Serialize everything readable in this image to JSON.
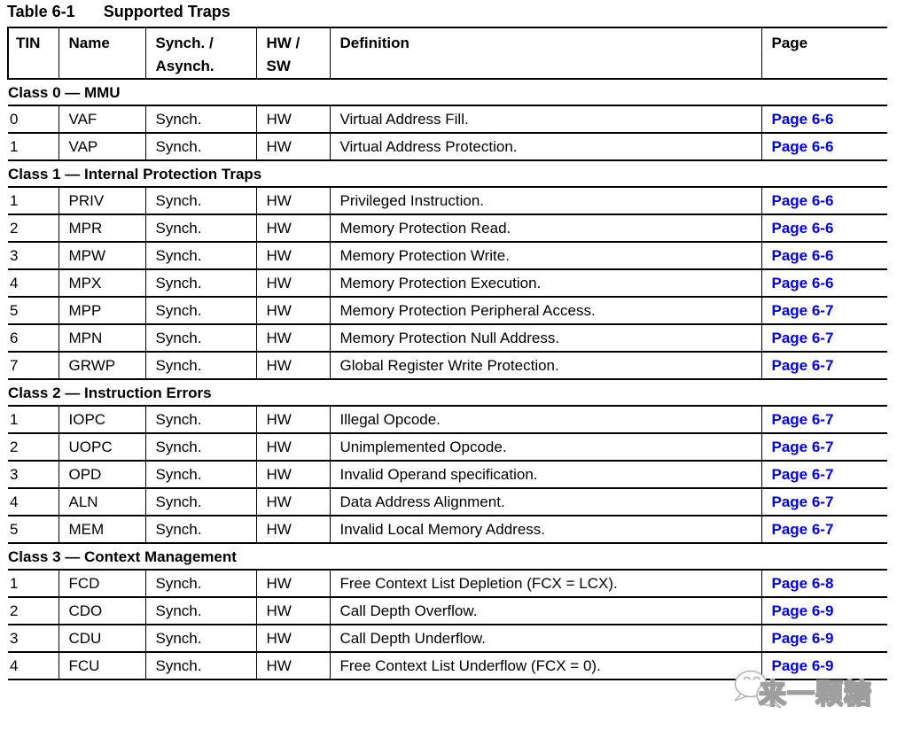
{
  "title": {
    "label": "Table 6-1",
    "caption": "Supported Traps"
  },
  "colors": {
    "link_blue": "#0000ee",
    "border_black": "#000000",
    "watermark_gray": "#9e9e9e",
    "background": "#ffffff"
  },
  "table": {
    "columns": [
      {
        "id": "tin",
        "lines": [
          "TIN"
        ]
      },
      {
        "id": "name",
        "lines": [
          "Name"
        ]
      },
      {
        "id": "synch-asynch",
        "lines": [
          "Synch. /",
          "Asynch."
        ]
      },
      {
        "id": "hw-sw",
        "lines": [
          "HW /",
          "SW"
        ]
      },
      {
        "id": "definition",
        "lines": [
          "Definition"
        ]
      },
      {
        "id": "page",
        "lines": [
          "Page"
        ]
      }
    ],
    "sections": [
      {
        "heading": "Class 0 — MMU",
        "rows": [
          {
            "tin": "0",
            "name": "VAF",
            "sync": "Synch.",
            "hw": "HW",
            "definition": "Virtual Address Fill.",
            "page": "Page 6-6"
          },
          {
            "tin": "1",
            "name": "VAP",
            "sync": "Synch.",
            "hw": "HW",
            "definition": "Virtual Address Protection.",
            "page": "Page 6-6"
          }
        ]
      },
      {
        "heading": "Class 1 — Internal Protection Traps",
        "rows": [
          {
            "tin": "1",
            "name": "PRIV",
            "sync": "Synch.",
            "hw": "HW",
            "definition": "Privileged Instruction.",
            "page": "Page 6-6"
          },
          {
            "tin": "2",
            "name": "MPR",
            "sync": "Synch.",
            "hw": "HW",
            "definition": "Memory Protection Read.",
            "page": "Page 6-6"
          },
          {
            "tin": "3",
            "name": "MPW",
            "sync": "Synch.",
            "hw": "HW",
            "definition": "Memory Protection Write.",
            "page": "Page 6-6"
          },
          {
            "tin": "4",
            "name": "MPX",
            "sync": "Synch.",
            "hw": "HW",
            "definition": "Memory Protection Execution.",
            "page": "Page 6-6"
          },
          {
            "tin": "5",
            "name": "MPP",
            "sync": "Synch.",
            "hw": "HW",
            "definition": "Memory Protection Peripheral Access.",
            "page": "Page 6-7"
          },
          {
            "tin": "6",
            "name": "MPN",
            "sync": "Synch.",
            "hw": "HW",
            "definition": "Memory Protection Null Address.",
            "page": "Page 6-7"
          },
          {
            "tin": "7",
            "name": "GRWP",
            "sync": "Synch.",
            "hw": "HW",
            "definition": "Global Register Write Protection.",
            "page": "Page 6-7"
          }
        ]
      },
      {
        "heading": "Class 2 — Instruction Errors",
        "rows": [
          {
            "tin": "1",
            "name": "IOPC",
            "sync": "Synch.",
            "hw": "HW",
            "definition": "Illegal Opcode.",
            "page": "Page 6-7"
          },
          {
            "tin": "2",
            "name": "UOPC",
            "sync": "Synch.",
            "hw": "HW",
            "definition": "Unimplemented Opcode.",
            "page": "Page 6-7"
          },
          {
            "tin": "3",
            "name": "OPD",
            "sync": "Synch.",
            "hw": "HW",
            "definition": "Invalid Operand specification.",
            "page": "Page 6-7"
          },
          {
            "tin": "4",
            "name": "ALN",
            "sync": "Synch.",
            "hw": "HW",
            "definition": "Data Address Alignment.",
            "page": "Page 6-7"
          },
          {
            "tin": "5",
            "name": "MEM",
            "sync": "Synch.",
            "hw": "HW",
            "definition": "Invalid Local Memory Address.",
            "page": "Page 6-7"
          }
        ]
      },
      {
        "heading": "Class 3 — Context Management",
        "rows": [
          {
            "tin": "1",
            "name": "FCD",
            "sync": "Synch.",
            "hw": "HW",
            "definition": "Free Context List Depletion (FCX = LCX).",
            "page": "Page 6-8"
          },
          {
            "tin": "2",
            "name": "CDO",
            "sync": "Synch.",
            "hw": "HW",
            "definition": "Call Depth Overflow.",
            "page": "Page 6-9"
          },
          {
            "tin": "3",
            "name": "CDU",
            "sync": "Synch.",
            "hw": "HW",
            "definition": "Call Depth Underflow.",
            "page": "Page 6-9"
          },
          {
            "tin": "4",
            "name": "FCU",
            "sync": "Synch.",
            "hw": "HW",
            "definition": "Free Context List Underflow (FCX = 0).",
            "page": "Page 6-9"
          }
        ]
      }
    ]
  },
  "watermark": {
    "text": "来一颗糖",
    "icon": "wechat-chat-bubbles-icon"
  }
}
